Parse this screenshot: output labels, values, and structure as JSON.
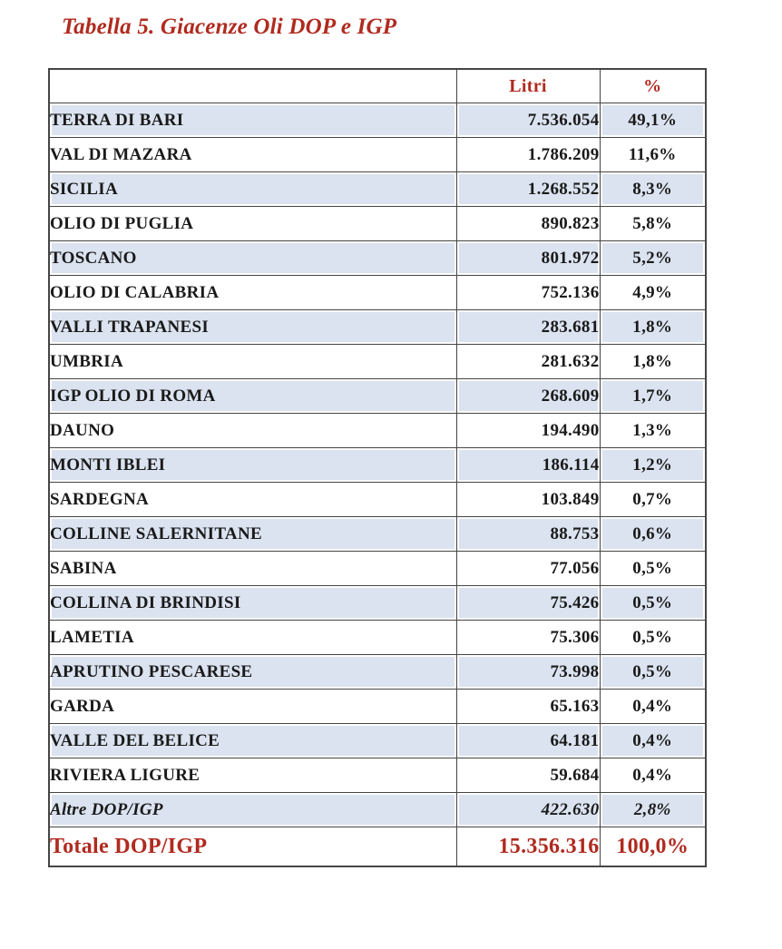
{
  "title": "Tabella 5. Giacenze Oli DOP e IGP",
  "table": {
    "header": {
      "name": "",
      "litri": "Litri",
      "percent": "%"
    },
    "rows": [
      {
        "name": "TERRA DI BARI",
        "litri": "7.536.054",
        "percent": "49,1%",
        "variant": "normal"
      },
      {
        "name": "VAL DI MAZARA",
        "litri": "1.786.209",
        "percent": "11,6%",
        "variant": "normal"
      },
      {
        "name": "SICILIA",
        "litri": "1.268.552",
        "percent": "8,3%",
        "variant": "normal"
      },
      {
        "name": "OLIO DI PUGLIA",
        "litri": "890.823",
        "percent": "5,8%",
        "variant": "normal"
      },
      {
        "name": "TOSCANO",
        "litri": "801.972",
        "percent": "5,2%",
        "variant": "normal"
      },
      {
        "name": "OLIO DI CALABRIA",
        "litri": "752.136",
        "percent": "4,9%",
        "variant": "normal"
      },
      {
        "name": "VALLI TRAPANESI",
        "litri": "283.681",
        "percent": "1,8%",
        "variant": "normal"
      },
      {
        "name": "UMBRIA",
        "litri": "281.632",
        "percent": "1,8%",
        "variant": "normal"
      },
      {
        "name": "IGP OLIO DI ROMA",
        "litri": "268.609",
        "percent": "1,7%",
        "variant": "normal"
      },
      {
        "name": "DAUNO",
        "litri": "194.490",
        "percent": "1,3%",
        "variant": "normal"
      },
      {
        "name": "MONTI IBLEI",
        "litri": "186.114",
        "percent": "1,2%",
        "variant": "normal"
      },
      {
        "name": "SARDEGNA",
        "litri": "103.849",
        "percent": "0,7%",
        "variant": "normal"
      },
      {
        "name": "COLLINE SALERNITANE",
        "litri": "88.753",
        "percent": "0,6%",
        "variant": "normal"
      },
      {
        "name": "SABINA",
        "litri": "77.056",
        "percent": "0,5%",
        "variant": "normal"
      },
      {
        "name": "COLLINA DI BRINDISI",
        "litri": "75.426",
        "percent": "0,5%",
        "variant": "normal"
      },
      {
        "name": "LAMETIA",
        "litri": "75.306",
        "percent": "0,5%",
        "variant": "normal"
      },
      {
        "name": "APRUTINO PESCARESE",
        "litri": "73.998",
        "percent": "0,5%",
        "variant": "normal"
      },
      {
        "name": "GARDA",
        "litri": "65.163",
        "percent": "0,4%",
        "variant": "normal"
      },
      {
        "name": "VALLE DEL BELICE",
        "litri": "64.181",
        "percent": "0,4%",
        "variant": "normal"
      },
      {
        "name": "RIVIERA LIGURE",
        "litri": "59.684",
        "percent": "0,4%",
        "variant": "normal"
      },
      {
        "name": "Altre DOP/IGP",
        "litri": "422.630",
        "percent": "2,8%",
        "variant": "altre"
      },
      {
        "name": "Totale DOP/IGP",
        "litri": "15.356.316",
        "percent": "100,0%",
        "variant": "totale"
      }
    ]
  },
  "colors": {
    "accent_red": "#b02a1f",
    "row_shade_blue": "#dbe3f0",
    "border_gray": "#454545",
    "text_black": "#1a1a1a"
  }
}
